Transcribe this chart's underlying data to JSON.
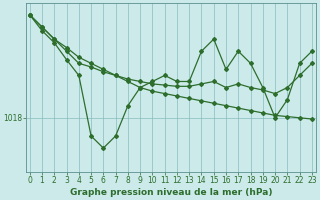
{
  "xlabel": "Graphe pression niveau de la mer (hPa)",
  "background_color": "#cceaea",
  "grid_color": "#88bbbb",
  "line_color": "#2d6e2d",
  "ytick_label": "1018",
  "ytick_value": 1018,
  "x_values": [
    0,
    1,
    2,
    3,
    4,
    5,
    6,
    7,
    8,
    9,
    10,
    11,
    12,
    13,
    14,
    15,
    16,
    17,
    18,
    19,
    20,
    21,
    22,
    23
  ],
  "series1": [
    1026.5,
    1025.5,
    1024.5,
    1023.8,
    1023.0,
    1022.5,
    1022.0,
    1021.5,
    1021.0,
    1020.5,
    1020.2,
    1020.0,
    1019.8,
    1019.6,
    1019.4,
    1019.2,
    1019.0,
    1018.8,
    1018.6,
    1018.4,
    1018.2,
    1018.1,
    1018.0,
    1017.9
  ],
  "series2": [
    1026.5,
    1025.5,
    1024.5,
    1023.5,
    1022.5,
    1022.2,
    1021.8,
    1021.5,
    1021.2,
    1021.0,
    1020.8,
    1020.7,
    1020.6,
    1020.6,
    1020.8,
    1021.0,
    1020.5,
    1020.8,
    1020.5,
    1020.3,
    1020.0,
    1020.5,
    1021.5,
    1022.5
  ],
  "series3": [
    1026.5,
    1025.2,
    1024.2,
    1022.8,
    1021.5,
    1016.5,
    1015.5,
    1016.5,
    1019.0,
    1020.5,
    1021.0,
    1021.5,
    1021.0,
    1021.0,
    1023.5,
    1024.5,
    1022.0,
    1023.5,
    1022.5,
    1020.5,
    1018.0,
    1019.5,
    1022.5,
    1023.5
  ],
  "ylim_min": 1013.5,
  "ylim_max": 1027.5,
  "marker": "D",
  "markersize": 2.0,
  "linewidth": 0.9,
  "xlabel_fontsize": 6.5,
  "tick_fontsize": 5.5
}
